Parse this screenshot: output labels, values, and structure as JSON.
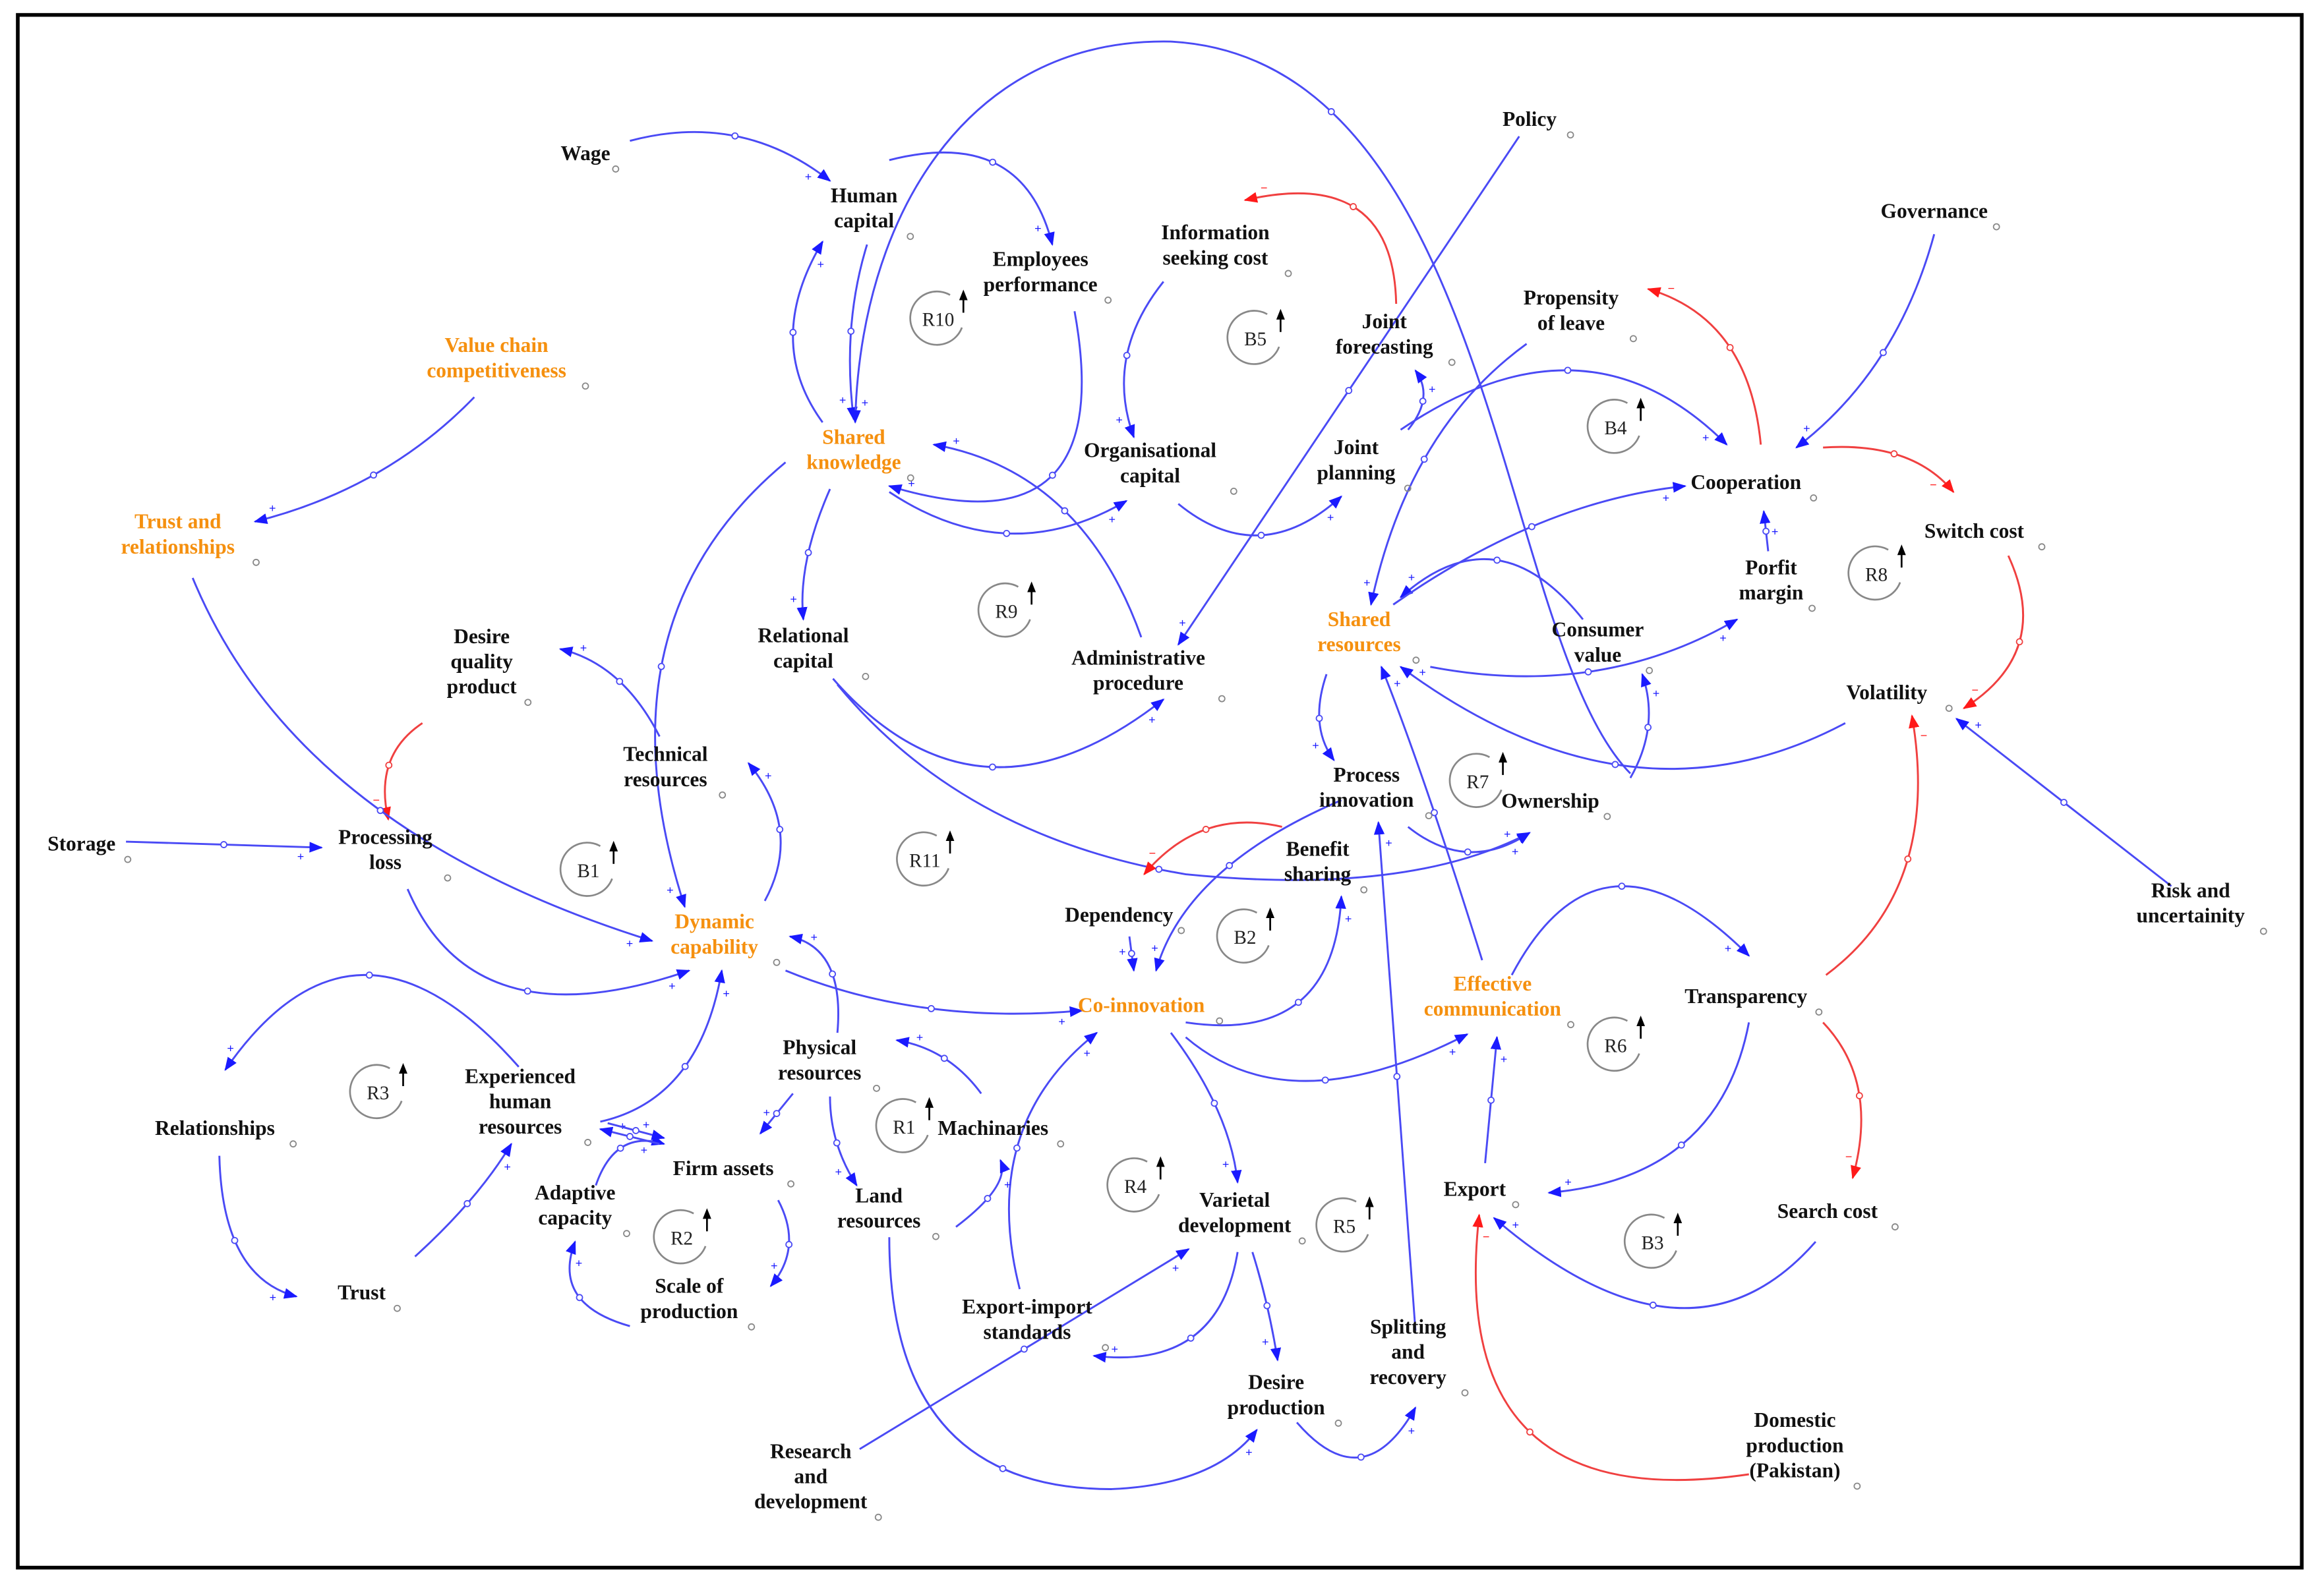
{
  "colors": {
    "link": "#4a4af5",
    "negative_link": "#f04040",
    "key_variable": "#f5900f",
    "variable": "#111111",
    "loop": "#888888"
  },
  "nodes": [
    {
      "id": "wage",
      "lines": [
        "Wage"
      ],
      "key": false
    },
    {
      "id": "human_capital",
      "lines": [
        "Human",
        "capital"
      ],
      "key": false
    },
    {
      "id": "employees_performance",
      "lines": [
        "Employees",
        "performance"
      ],
      "key": false
    },
    {
      "id": "information_seeking_cost",
      "lines": [
        "Information",
        "seeking cost"
      ],
      "key": false
    },
    {
      "id": "policy",
      "lines": [
        "Policy"
      ],
      "key": false
    },
    {
      "id": "governance",
      "lines": [
        "Governance"
      ],
      "key": false
    },
    {
      "id": "value_chain_competitiveness",
      "lines": [
        "Value chain",
        "competitiveness"
      ],
      "key": true
    },
    {
      "id": "joint_forecasting",
      "lines": [
        "Joint",
        "forecasting"
      ],
      "key": false
    },
    {
      "id": "propensity_of_leave",
      "lines": [
        "Propensity",
        "of leave"
      ],
      "key": false
    },
    {
      "id": "shared_knowledge",
      "lines": [
        "Shared",
        "knowledge"
      ],
      "key": true
    },
    {
      "id": "organisational_capital",
      "lines": [
        "Organisational",
        "capital"
      ],
      "key": false
    },
    {
      "id": "joint_planning",
      "lines": [
        "Joint",
        "planning"
      ],
      "key": false
    },
    {
      "id": "cooperation",
      "lines": [
        "Cooperation"
      ],
      "key": false
    },
    {
      "id": "switch_cost",
      "lines": [
        "Switch cost"
      ],
      "key": false
    },
    {
      "id": "trust_and_relationships",
      "lines": [
        "Trust and",
        "relationships"
      ],
      "key": true
    },
    {
      "id": "porfit_margin",
      "lines": [
        "Porfit",
        "margin"
      ],
      "key": false
    },
    {
      "id": "shared_resources",
      "lines": [
        "Shared",
        "resources"
      ],
      "key": true
    },
    {
      "id": "consumer_value",
      "lines": [
        "Consumer",
        "value"
      ],
      "key": false
    },
    {
      "id": "relational_capital",
      "lines": [
        "Relational",
        "capital"
      ],
      "key": false
    },
    {
      "id": "administrative_procedure",
      "lines": [
        "Administrative",
        "procedure"
      ],
      "key": false
    },
    {
      "id": "desire_quality_product",
      "lines": [
        "Desire",
        "quality",
        "product"
      ],
      "key": false
    },
    {
      "id": "volatility",
      "lines": [
        "Volatility"
      ],
      "key": false
    },
    {
      "id": "technical_resources",
      "lines": [
        "Technical",
        "resources"
      ],
      "key": false
    },
    {
      "id": "process_innovation",
      "lines": [
        "Process",
        "innovation"
      ],
      "key": false
    },
    {
      "id": "ownership",
      "lines": [
        "Ownership"
      ],
      "key": false
    },
    {
      "id": "storage",
      "lines": [
        "Storage"
      ],
      "key": false
    },
    {
      "id": "processing_loss",
      "lines": [
        "Processing",
        "loss"
      ],
      "key": false
    },
    {
      "id": "benefit_sharing",
      "lines": [
        "Benefit",
        "sharing"
      ],
      "key": false
    },
    {
      "id": "dependency",
      "lines": [
        "Dependency"
      ],
      "key": false
    },
    {
      "id": "risk_and_uncertainity",
      "lines": [
        "Risk and",
        "uncertainity"
      ],
      "key": false
    },
    {
      "id": "dynamic_capability",
      "lines": [
        "Dynamic",
        "capability"
      ],
      "key": true
    },
    {
      "id": "co_innovation",
      "lines": [
        "Co-innovation"
      ],
      "key": true
    },
    {
      "id": "effective_communication",
      "lines": [
        "Effective",
        "communication"
      ],
      "key": true
    },
    {
      "id": "transparency",
      "lines": [
        "Transparency"
      ],
      "key": false
    },
    {
      "id": "physical_resources",
      "lines": [
        "Physical",
        "resources"
      ],
      "key": false
    },
    {
      "id": "experienced_human_resources",
      "lines": [
        "Experienced",
        "human",
        "resources"
      ],
      "key": false
    },
    {
      "id": "relationships",
      "lines": [
        "Relationships"
      ],
      "key": false
    },
    {
      "id": "machinaries",
      "lines": [
        "Machinaries"
      ],
      "key": false
    },
    {
      "id": "firm_assets",
      "lines": [
        "Firm assets"
      ],
      "key": false
    },
    {
      "id": "export",
      "lines": [
        "Export"
      ],
      "key": false
    },
    {
      "id": "land_resources",
      "lines": [
        "Land",
        "resources"
      ],
      "key": false
    },
    {
      "id": "varietal_development",
      "lines": [
        "Varietal",
        "development"
      ],
      "key": false
    },
    {
      "id": "search_cost",
      "lines": [
        "Search cost"
      ],
      "key": false
    },
    {
      "id": "adaptive_capacity",
      "lines": [
        "Adaptive",
        "capacity"
      ],
      "key": false
    },
    {
      "id": "trust",
      "lines": [
        "Trust"
      ],
      "key": false
    },
    {
      "id": "scale_of_production",
      "lines": [
        "Scale of",
        "production"
      ],
      "key": false
    },
    {
      "id": "export_import_standards",
      "lines": [
        "Export-import",
        "standards"
      ],
      "key": false
    },
    {
      "id": "splitting_and_recovery",
      "lines": [
        "Splitting",
        "and",
        "recovery"
      ],
      "key": false
    },
    {
      "id": "desire_production",
      "lines": [
        "Desire",
        "production"
      ],
      "key": false
    },
    {
      "id": "domestic_production",
      "lines": [
        "Domestic",
        "production",
        "(Pakistan)"
      ],
      "key": false
    },
    {
      "id": "research_and_development",
      "lines": [
        "Research",
        "and",
        "development"
      ],
      "key": false
    }
  ],
  "loops": [
    "R10",
    "B5",
    "B4",
    "R9",
    "R8",
    "B1",
    "R11",
    "R7",
    "B2",
    "R3",
    "R6",
    "R1",
    "R4",
    "R5",
    "R2",
    "B3"
  ],
  "links": [
    {
      "from": "wage",
      "to": "human_capital",
      "sign": "+"
    },
    {
      "from": "human_capital",
      "to": "employees_performance",
      "sign": "+"
    },
    {
      "from": "employees_performance",
      "to": "shared_knowledge",
      "sign": "+"
    },
    {
      "from": "human_capital",
      "to": "shared_knowledge",
      "sign": "+"
    },
    {
      "from": "shared_knowledge",
      "to": "human_capital",
      "sign": "+"
    },
    {
      "from": "ownership",
      "to": "shared_knowledge",
      "sign": "+"
    },
    {
      "from": "shared_knowledge",
      "to": "organisational_capital",
      "sign": "+"
    },
    {
      "from": "information_seeking_cost",
      "to": "organisational_capital",
      "sign": "+"
    },
    {
      "from": "joint_forecasting",
      "to": "information_seeking_cost",
      "sign": "−"
    },
    {
      "from": "organisational_capital",
      "to": "joint_planning",
      "sign": "+"
    },
    {
      "from": "joint_planning",
      "to": "joint_forecasting",
      "sign": "+"
    },
    {
      "from": "policy",
      "to": "administrative_procedure",
      "sign": "+"
    },
    {
      "from": "propensity_of_leave",
      "to": "shared_resources",
      "sign": "+"
    },
    {
      "from": "joint_planning",
      "to": "cooperation",
      "sign": "+"
    },
    {
      "from": "cooperation",
      "to": "propensity_of_leave",
      "sign": "−"
    },
    {
      "from": "governance",
      "to": "cooperation",
      "sign": "+"
    },
    {
      "from": "cooperation",
      "to": "switch_cost",
      "sign": "−"
    },
    {
      "from": "switch_cost",
      "to": "volatility",
      "sign": "−"
    },
    {
      "from": "risk_and_uncertainity",
      "to": "volatility",
      "sign": "+"
    },
    {
      "from": "transparency",
      "to": "volatility",
      "sign": "−"
    },
    {
      "from": "volatility",
      "to": "shared_resources",
      "sign": "+"
    },
    {
      "from": "consumer_value",
      "to": "shared_resources",
      "sign": "+"
    },
    {
      "from": "shared_resources",
      "to": "cooperation",
      "sign": "+"
    },
    {
      "from": "shared_resources",
      "to": "porfit_margin",
      "sign": "+"
    },
    {
      "from": "porfit_margin",
      "to": "cooperation",
      "sign": "+"
    },
    {
      "from": "ownership",
      "to": "consumer_value",
      "sign": "+"
    },
    {
      "from": "shared_resources",
      "to": "process_innovation",
      "sign": "+"
    },
    {
      "from": "process_innovation",
      "to": "ownership",
      "sign": "+"
    },
    {
      "from": "shared_knowledge",
      "to": "relational_capital",
      "sign": "+"
    },
    {
      "from": "relational_capital",
      "to": "ownership",
      "sign": "+"
    },
    {
      "from": "relational_capital",
      "to": "administrative_procedure",
      "sign": "+"
    },
    {
      "from": "administrative_procedure",
      "to": "shared_knowledge",
      "sign": "+"
    },
    {
      "from": "shared_knowledge",
      "to": "dynamic_capability",
      "sign": "+"
    },
    {
      "from": "technical_resources",
      "to": "desire_quality_product",
      "sign": "+"
    },
    {
      "from": "dynamic_capability",
      "to": "technical_resources",
      "sign": "+"
    },
    {
      "from": "desire_quality_product",
      "to": "processing_loss",
      "sign": "−"
    },
    {
      "from": "storage",
      "to": "processing_loss",
      "sign": "+"
    },
    {
      "from": "trust_and_relationships",
      "to": "dynamic_capability",
      "sign": "+"
    },
    {
      "from": "value_chain_competitiveness",
      "to": "trust_and_relationships",
      "sign": "+"
    },
    {
      "from": "processing_loss",
      "to": "dynamic_capability",
      "sign": "+"
    },
    {
      "from": "dynamic_capability",
      "to": "co_innovation",
      "sign": "+"
    },
    {
      "from": "co_innovation",
      "to": "benefit_sharing",
      "sign": "+"
    },
    {
      "from": "benefit_sharing",
      "to": "dependency",
      "sign": "−"
    },
    {
      "from": "dependency",
      "to": "co_innovation",
      "sign": "+"
    },
    {
      "from": "process_innovation",
      "to": "co_innovation",
      "sign": "+"
    },
    {
      "from": "co_innovation",
      "to": "effective_communication",
      "sign": "+"
    },
    {
      "from": "co_innovation",
      "to": "varietal_development",
      "sign": "+"
    },
    {
      "from": "effective_communication",
      "to": "shared_resources",
      "sign": "+"
    },
    {
      "from": "effective_communication",
      "to": "transparency",
      "sign": "+"
    },
    {
      "from": "transparency",
      "to": "export",
      "sign": "+"
    },
    {
      "from": "transparency",
      "to": "search_cost",
      "sign": "−"
    },
    {
      "from": "search_cost",
      "to": "export",
      "sign": "+"
    },
    {
      "from": "export",
      "to": "effective_communication",
      "sign": "+"
    },
    {
      "from": "domestic_production",
      "to": "export",
      "sign": "−"
    },
    {
      "from": "splitting_and_recovery",
      "to": "process_innovation",
      "sign": "+"
    },
    {
      "from": "desire_production",
      "to": "splitting_and_recovery",
      "sign": "+"
    },
    {
      "from": "varietal_development",
      "to": "desire_production",
      "sign": "+"
    },
    {
      "from": "varietal_development",
      "to": "export_import_standards",
      "sign": "+"
    },
    {
      "from": "export_import_standards",
      "to": "co_innovation",
      "sign": "+"
    },
    {
      "from": "research_and_development",
      "to": "varietal_development",
      "sign": "+"
    },
    {
      "from": "land_resources",
      "to": "desire_production",
      "sign": "+"
    },
    {
      "from": "land_resources",
      "to": "machinaries",
      "sign": "+"
    },
    {
      "from": "machinaries",
      "to": "physical_resources",
      "sign": "+"
    },
    {
      "from": "physical_resources",
      "to": "land_resources",
      "sign": "+"
    },
    {
      "from": "physical_resources",
      "to": "firm_assets",
      "sign": "+"
    },
    {
      "from": "physical_resources",
      "to": "dynamic_capability",
      "sign": "+"
    },
    {
      "from": "firm_assets",
      "to": "scale_of_production",
      "sign": "+"
    },
    {
      "from": "scale_of_production",
      "to": "adaptive_capacity",
      "sign": "+"
    },
    {
      "from": "adaptive_capacity",
      "to": "firm_assets",
      "sign": "+"
    },
    {
      "from": "experienced_human_resources",
      "to": "dynamic_capability",
      "sign": "+"
    },
    {
      "from": "firm_assets",
      "to": "experienced_human_resources",
      "sign": "+"
    },
    {
      "from": "experienced_human_resources",
      "to": "firm_assets",
      "sign": "+"
    },
    {
      "from": "experienced_human_resources",
      "to": "relationships",
      "sign": "+"
    },
    {
      "from": "relationships",
      "to": "trust",
      "sign": "+"
    },
    {
      "from": "trust",
      "to": "experienced_human_resources",
      "sign": "+"
    }
  ]
}
